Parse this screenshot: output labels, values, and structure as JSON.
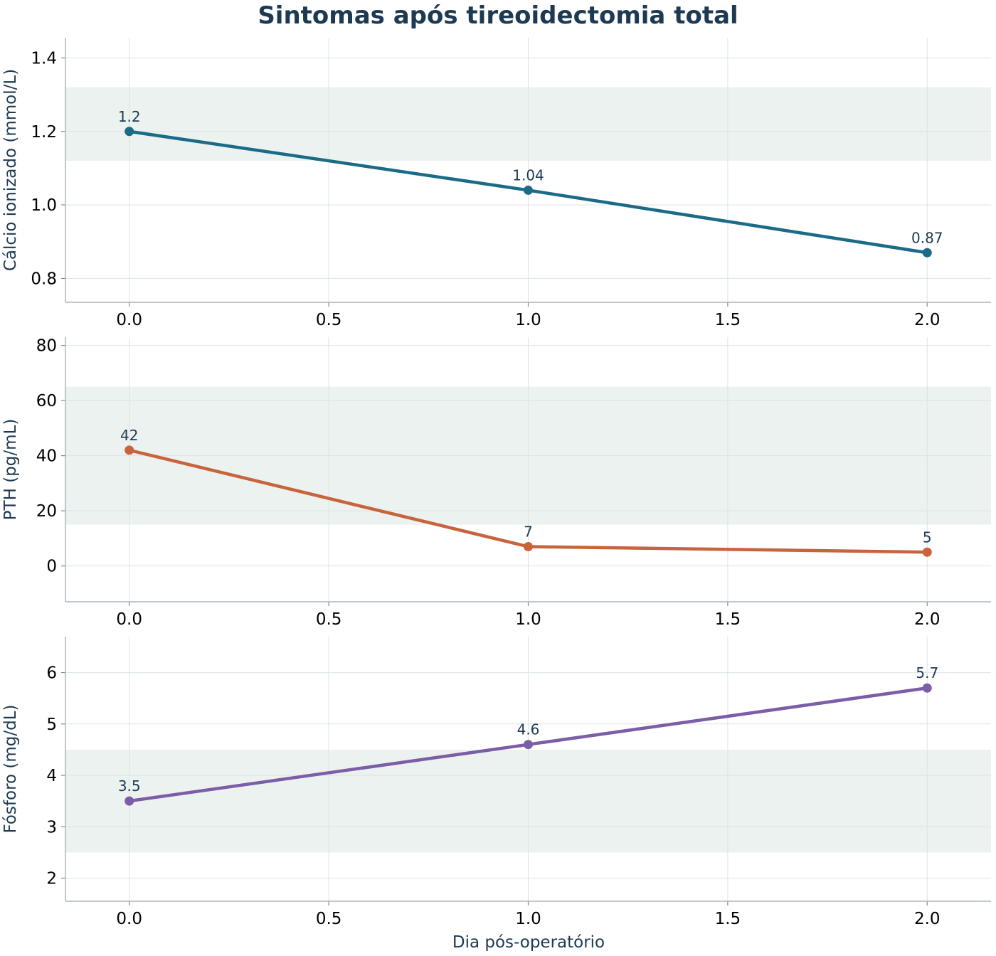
{
  "chart_data": {
    "type": "line",
    "title": "Sintomas após tireoidectomia total",
    "xlabel": "Dia pós-operatório",
    "x_ticks": [
      "0.0",
      "0.5",
      "1.0",
      "1.5",
      "2.0"
    ],
    "xlim": [
      -0.16,
      2.16
    ],
    "grid": true,
    "panels": [
      {
        "ylabel": "Cálcio ionizado (mmol/L)",
        "x": [
          0,
          1,
          2
        ],
        "values": [
          1.2,
          1.04,
          0.87
        ],
        "value_labels": [
          "1.2",
          "1.04",
          "0.87"
        ],
        "y_ticks": [
          "0.8",
          "1.0",
          "1.2",
          "1.4"
        ],
        "y_tick_values": [
          0.8,
          1.0,
          1.2,
          1.4
        ],
        "ylim": [
          0.735,
          1.455
        ],
        "reference_range": [
          1.12,
          1.32
        ],
        "color": "#1b6b87"
      },
      {
        "ylabel": "PTH (pg/mL)",
        "x": [
          0,
          1,
          2
        ],
        "values": [
          42,
          7,
          5
        ],
        "value_labels": [
          "42",
          "7",
          "5"
        ],
        "y_ticks": [
          "0",
          "20",
          "40",
          "60",
          "80"
        ],
        "y_tick_values": [
          0,
          20,
          40,
          60,
          80
        ],
        "ylim": [
          -13,
          83
        ],
        "reference_range": [
          15,
          65
        ],
        "color": "#c8643c"
      },
      {
        "ylabel": "Fósforo (mg/dL)",
        "x": [
          0,
          1,
          2
        ],
        "values": [
          3.5,
          4.6,
          5.7
        ],
        "value_labels": [
          "3.5",
          "4.6",
          "5.7"
        ],
        "y_ticks": [
          "2",
          "3",
          "4",
          "5",
          "6"
        ],
        "y_tick_values": [
          2,
          3,
          4,
          5,
          6
        ],
        "ylim": [
          1.55,
          6.7
        ],
        "reference_range": [
          2.5,
          4.5
        ],
        "color": "#7b5ea7"
      }
    ]
  }
}
